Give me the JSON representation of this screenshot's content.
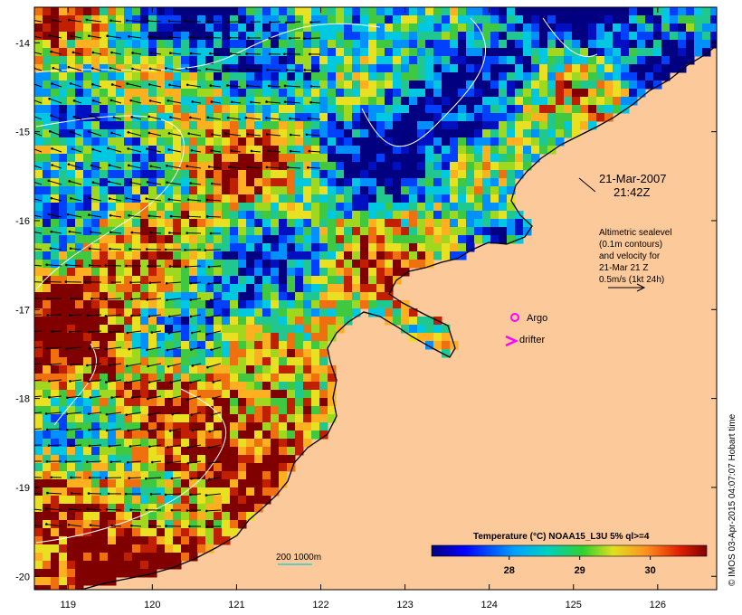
{
  "map": {
    "x_axis_labels": [
      "119",
      "120",
      "121",
      "122",
      "123",
      "124",
      "125",
      "126"
    ],
    "y_axis_labels": [
      "-14",
      "-15",
      "-16",
      "-17",
      "-18",
      "-19",
      "-20"
    ],
    "x_range": [
      118.6,
      126.7
    ],
    "y_range": [
      -20.15,
      -13.6
    ],
    "date_label": "21-Mar-2007",
    "time_label": "21:42Z",
    "legend_text_lines": [
      "Altimetric sealevel",
      "(0.1m contours)",
      "and velocity for",
      "21-Mar 21 Z",
      "0.5m/s (1kt 24h)"
    ],
    "argo_label": "Argo",
    "drifter_label": "drifter",
    "isobath_label": "200  1000m",
    "colorbar_title": "Temperature (°C) NOAA15_L3U 5% ql>=4",
    "colorbar_ticks": [
      "28",
      "29",
      "30"
    ],
    "colorbar_range": [
      26.9,
      30.8
    ],
    "credit": "© IMOS 03-Apr-2015 04:07:07 Hobart time",
    "colors": {
      "land": "#fcc99b",
      "coast": "#000000",
      "argo": "#ff00ff",
      "drifter": "#ff00ff",
      "contour": "#ffffff",
      "isobath": "#33cccc"
    }
  }
}
